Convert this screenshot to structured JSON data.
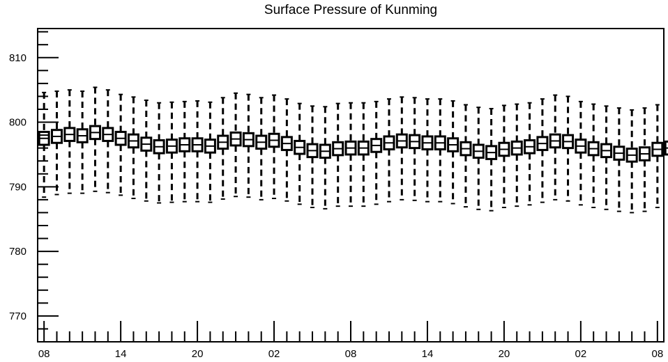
{
  "chart_data": {
    "type": "boxplot",
    "title": "Surface Pressure of Kunming",
    "xlabel": "",
    "ylabel": "",
    "ylim": [
      766,
      814.5
    ],
    "grid": false,
    "legend": "none",
    "y_ticks": [
      770,
      780,
      790,
      800,
      810
    ],
    "y_tick_labels": [
      "770",
      "780",
      "790",
      "800",
      "810"
    ],
    "x_ticks_hours": [
      0,
      6,
      12,
      18,
      24,
      30,
      36,
      42,
      48
    ],
    "x_tick_labels": [
      "08",
      "14",
      "20",
      "02",
      "08",
      "14",
      "20",
      "02",
      "08"
    ],
    "x_range_hours": [
      -0.5,
      48.5
    ],
    "box_interval_hours": 1,
    "series": [
      {
        "first_hour_label": "08",
        "median": [
          797.5,
          797.8,
          798.1,
          797.9,
          798.4,
          798.1,
          797.5,
          797.1,
          796.6,
          796.2,
          796.3,
          796.5,
          796.5,
          796.3,
          796.9,
          797.4,
          797.3,
          796.9,
          797.2,
          796.7,
          796.1,
          795.6,
          795.5,
          795.9,
          796.0,
          796.0,
          796.4,
          796.8,
          797.1,
          797.0,
          796.8,
          796.8,
          796.5,
          795.9,
          795.5,
          795.3,
          795.8,
          796.0,
          796.2,
          796.7,
          797.1,
          797.0,
          796.3,
          795.9,
          795.6,
          795.2,
          794.9,
          795.1,
          795.8,
          796.0
        ],
        "q1": [
          796.5,
          796.8,
          797.1,
          796.9,
          797.4,
          797.1,
          796.5,
          796.1,
          795.6,
          795.2,
          795.3,
          795.5,
          795.5,
          795.3,
          795.9,
          796.4,
          796.3,
          795.9,
          796.2,
          795.7,
          795.1,
          794.6,
          794.5,
          794.9,
          795.0,
          795.0,
          795.4,
          795.8,
          796.1,
          796.0,
          795.8,
          795.8,
          795.5,
          794.9,
          794.5,
          794.3,
          794.8,
          795.0,
          795.2,
          795.7,
          796.1,
          796.0,
          795.3,
          794.9,
          794.6,
          794.2,
          793.9,
          794.1,
          794.8,
          795.0
        ],
        "q3": [
          798.5,
          798.8,
          799.1,
          798.9,
          799.4,
          799.1,
          798.5,
          798.1,
          797.6,
          797.2,
          797.3,
          797.5,
          797.5,
          797.3,
          797.9,
          798.4,
          798.3,
          797.9,
          798.2,
          797.7,
          797.1,
          796.6,
          796.5,
          796.9,
          797.0,
          797.0,
          797.4,
          797.8,
          798.1,
          798.0,
          797.8,
          797.8,
          797.5,
          796.9,
          796.5,
          796.3,
          796.8,
          797.0,
          797.2,
          797.7,
          798.1,
          798.0,
          797.3,
          796.9,
          796.6,
          796.2,
          795.9,
          796.1,
          796.8,
          797.0
        ],
        "whisker_low": [
          788.4,
          788.8,
          789.0,
          789.0,
          789.3,
          789.1,
          788.7,
          788.2,
          787.8,
          787.5,
          787.6,
          787.7,
          787.7,
          787.6,
          788.1,
          788.5,
          788.4,
          788.0,
          788.2,
          787.8,
          787.3,
          786.8,
          786.6,
          787.0,
          787.0,
          787.0,
          787.3,
          787.7,
          788.0,
          787.9,
          787.7,
          787.7,
          787.4,
          786.9,
          786.5,
          786.3,
          786.8,
          787.0,
          787.2,
          787.6,
          788.0,
          787.8,
          787.2,
          786.8,
          786.5,
          786.2,
          786.0,
          786.2,
          786.8,
          787.0
        ],
        "whisker_high": [
          804.6,
          804.8,
          805.0,
          804.8,
          805.4,
          805.0,
          804.3,
          803.9,
          803.4,
          803.0,
          803.1,
          803.2,
          803.3,
          803.1,
          803.8,
          804.5,
          804.3,
          803.8,
          804.2,
          803.6,
          802.9,
          802.5,
          802.4,
          802.9,
          803.0,
          803.0,
          803.2,
          803.6,
          803.9,
          803.8,
          803.6,
          803.6,
          803.3,
          802.7,
          802.3,
          802.1,
          802.6,
          802.8,
          803.0,
          803.6,
          804.2,
          804.0,
          803.2,
          802.8,
          802.5,
          802.2,
          801.9,
          802.2,
          802.7,
          803.0
        ]
      }
    ]
  }
}
